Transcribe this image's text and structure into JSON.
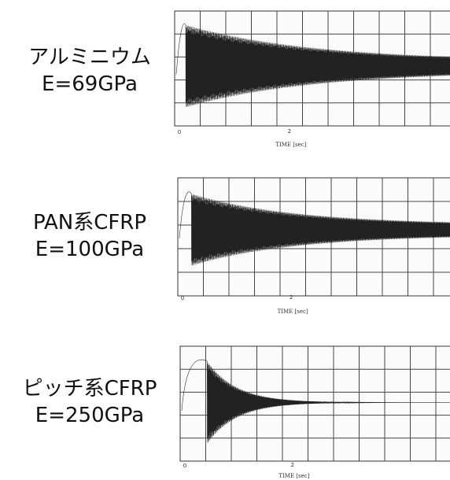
{
  "chart_data": [
    {
      "type": "line",
      "material": "アルミニウム",
      "modulus": "E=69GPa",
      "xlabel": "TIME [sec]",
      "xticks": [
        "0",
        "2"
      ],
      "xlim": [
        0,
        4.8
      ],
      "series": [
        {
          "initial_amplitude": 1.0,
          "final_amplitude": 0.12,
          "decay_rate": 0.45
        }
      ]
    },
    {
      "type": "line",
      "material": "PAN系CFRP",
      "modulus": "E=100GPa",
      "xlabel": "TIME [sec]",
      "xticks": [
        "0",
        "2"
      ],
      "xlim": [
        0,
        4.8
      ],
      "series": [
        {
          "initial_amplitude": 0.85,
          "final_amplitude": 0.12,
          "decay_rate": 0.55
        }
      ]
    },
    {
      "type": "line",
      "material": "ピッチ系CFRP",
      "modulus": "E=250GPa",
      "xlabel": "TIME [sec]",
      "xticks": [
        "0",
        "2"
      ],
      "xlim": [
        0,
        4.8
      ],
      "series": [
        {
          "initial_amplitude": 1.0,
          "final_amplitude": 0.0,
          "decay_rate": 1.9
        }
      ]
    }
  ]
}
